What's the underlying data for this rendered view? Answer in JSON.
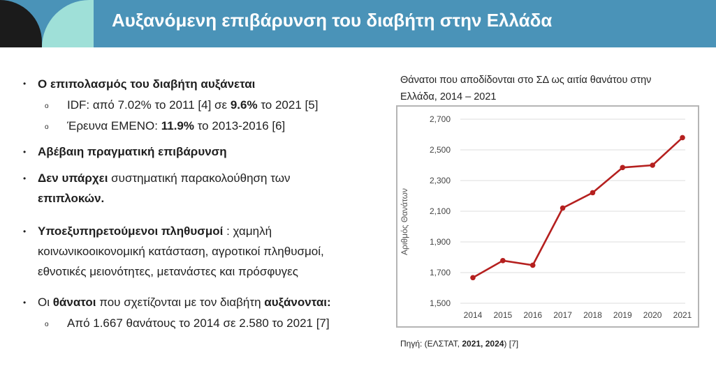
{
  "header": {
    "title": "Αυξανόμενη επιβάρυνση του διαβήτη στην Ελλάδα"
  },
  "bullets": {
    "b1": "Ο επιπολασμός του διαβήτη αυξάνεται",
    "b1a": {
      "t1": "IDF: από 7.02% το 2011 [4] σε ",
      "t2": "9.6%",
      "t3": " το 2021 [5]"
    },
    "b1b": {
      "t1": "Έρευνα ΕΜΕΝΟ: ",
      "t2": "11.9%",
      "t3": " το 2013-2016 [6]"
    },
    "b2": "Αβέβαιη πραγματική επιβάρυνση",
    "b3": {
      "t1": "Δεν υπάρχει",
      "t2": " συστηματική παρακολούθηση των",
      "t3": "επιπλοκών."
    },
    "b4": {
      "t1": "Υποεξυπηρετούμενοι πληθυσμοί",
      "t2": " : χαμηλή",
      "t3": "κοινωνικοοικονομική κατάσταση, αγροτικοί πληθυσμοί,",
      "t4": "εθνοτικές μειονότητες, μετανάστες και πρόσφυγες"
    },
    "b5": {
      "t1": "Οι ",
      "t2": "θάνατοι",
      "t3": " που σχετίζονται με τον διαβήτη ",
      "t4": "αυξάνονται:"
    },
    "b5a": "Από 1.667 θανάτους το 2014 σε 2.580 το 2021 [7]"
  },
  "caption": {
    "line1": "Θάνατοι που αποδίδονται στο ΣΔ ως αιτία θανάτου στην",
    "line2": "Ελλάδα, 2014 – 2021"
  },
  "source": {
    "t1": "Πηγή: (ΕΛΣΤΑΤ, ",
    "t2": "2021, 2024",
    "t3": ") [7]"
  },
  "chart_data": {
    "type": "line",
    "categories": [
      "2014",
      "2015",
      "2016",
      "2017",
      "2018",
      "2019",
      "2020",
      "2021"
    ],
    "series": [
      {
        "values": [
          1667,
          1778,
          1748,
          2121,
          2221,
          2385,
          2400,
          2580
        ]
      }
    ],
    "ylabel": "Αριθμός Θανάτων",
    "ylim": [
      1500,
      2700
    ],
    "yticks": [
      1500,
      1700,
      1900,
      2100,
      2300,
      2500,
      2700
    ],
    "ytick_labels": [
      "1,500",
      "1,700",
      "1,900",
      "2,100",
      "2,300",
      "2,500",
      "2,700"
    ],
    "grid": true,
    "line_color": "#b5201f"
  }
}
